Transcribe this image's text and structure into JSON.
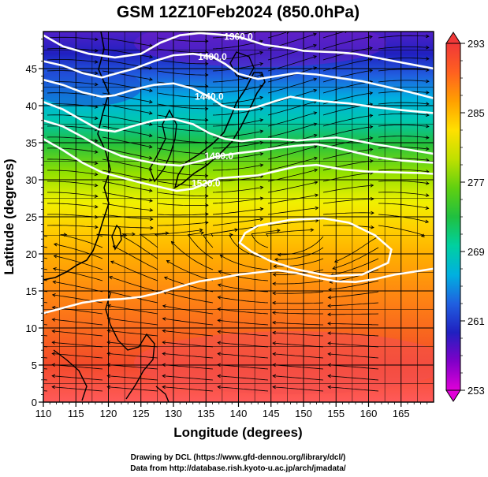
{
  "chart_data": {
    "type": "heatmap",
    "title": "GSM 12Z10Feb2024 (850.0hPa)",
    "xlabel": "Longitude (degrees)",
    "ylabel": "Latitude  (degrees)",
    "xlim": [
      110,
      170
    ],
    "ylim": [
      0,
      50
    ],
    "x_ticks": [
      "110",
      "115",
      "120",
      "125",
      "130",
      "135",
      "140",
      "145",
      "150",
      "155",
      "160",
      "165"
    ],
    "y_ticks": [
      "0",
      "5",
      "10",
      "15",
      "20",
      "25",
      "30",
      "35",
      "40",
      "45"
    ],
    "colorbar": {
      "min": 253,
      "max": 293,
      "tick_labels": [
        "253",
        "261",
        "269",
        "277",
        "285",
        "293"
      ],
      "colors": [
        "#e000d8",
        "#8000c8",
        "#2020c0",
        "#2060e0",
        "#00b0e0",
        "#00d0a0",
        "#20c040",
        "#60d010",
        "#c0e000",
        "#ffe000",
        "#ffa000",
        "#ff6020",
        "#f03838"
      ]
    },
    "contours": [
      {
        "label": "1360.0",
        "points": [
          [
            110,
            49.5
          ],
          [
            113,
            48
          ],
          [
            117,
            47
          ],
          [
            121,
            46.5
          ],
          [
            125,
            47
          ],
          [
            128,
            48.5
          ],
          [
            131,
            49.5
          ],
          [
            134,
            49.8
          ],
          [
            137,
            49.6
          ],
          [
            140,
            49.3
          ],
          [
            144,
            48.2
          ],
          [
            147.5,
            47.8
          ],
          [
            150,
            47.4
          ],
          [
            152.5,
            47.3
          ],
          [
            155,
            47.2
          ],
          [
            158,
            47
          ],
          [
            161,
            46.5
          ],
          [
            164,
            46
          ],
          [
            167,
            45.5
          ],
          [
            170,
            45
          ]
        ]
      },
      {
        "label": "1400.0",
        "points": [
          [
            110,
            46
          ],
          [
            113,
            45.4
          ],
          [
            116,
            44.4
          ],
          [
            119,
            43.8
          ],
          [
            121,
            44.3
          ],
          [
            124,
            45
          ],
          [
            127,
            46
          ],
          [
            130,
            46.8
          ],
          [
            133,
            47
          ],
          [
            136,
            46.6
          ],
          [
            138,
            45.6
          ],
          [
            140,
            44.3
          ],
          [
            143,
            43.6
          ],
          [
            146,
            44
          ],
          [
            149,
            44.4
          ],
          [
            152,
            44.2
          ],
          [
            155,
            43.8
          ],
          [
            159,
            43.3
          ],
          [
            163,
            42.5
          ],
          [
            166.5,
            41.8
          ],
          [
            170,
            41
          ]
        ]
      },
      {
        "label": "1440.0",
        "points": [
          [
            110,
            43.5
          ],
          [
            113,
            42.8
          ],
          [
            116,
            41.8
          ],
          [
            119,
            41.2
          ],
          [
            121,
            41.4
          ],
          [
            124,
            42.2
          ],
          [
            127,
            42.8
          ],
          [
            130,
            43
          ],
          [
            133,
            42.3
          ],
          [
            135.5,
            41.2
          ],
          [
            137.5,
            40
          ],
          [
            139.5,
            39.5
          ],
          [
            141.5,
            39.5
          ],
          [
            143.5,
            40
          ],
          [
            146,
            40.7
          ],
          [
            148,
            41.2
          ],
          [
            150,
            40.9
          ],
          [
            153,
            40.6
          ],
          [
            157,
            40.3
          ],
          [
            161,
            39.8
          ],
          [
            165,
            39.4
          ],
          [
            170,
            39
          ]
        ]
      },
      {
        "label": "",
        "points": [
          [
            110,
            40.5
          ],
          [
            113,
            39.5
          ],
          [
            116,
            38
          ],
          [
            118.5,
            36.8
          ],
          [
            121,
            36.5
          ],
          [
            124,
            37.3
          ],
          [
            127,
            38
          ],
          [
            130,
            38.2
          ],
          [
            133,
            37.5
          ],
          [
            135.5,
            36.3
          ],
          [
            138,
            35.5
          ],
          [
            140.5,
            35.2
          ],
          [
            143,
            35.5
          ],
          [
            146,
            35.5
          ],
          [
            149,
            35.3
          ],
          [
            152,
            35.5
          ],
          [
            155,
            35.7
          ],
          [
            158,
            35.3
          ],
          [
            161,
            34.8
          ],
          [
            164.5,
            34.3
          ],
          [
            168,
            33.8
          ],
          [
            170,
            33.5
          ]
        ]
      },
      {
        "label": "1520.0",
        "points": [
          [
            110,
            35.5
          ],
          [
            113,
            34
          ],
          [
            116,
            32.3
          ],
          [
            119,
            31
          ],
          [
            122,
            30.3
          ],
          [
            125,
            29.6
          ],
          [
            128,
            29
          ],
          [
            130.5,
            28.5
          ],
          [
            133,
            28.8
          ],
          [
            135,
            29.5
          ],
          [
            137,
            30.2
          ],
          [
            140,
            30.4
          ],
          [
            143,
            30.6
          ],
          [
            146,
            31.2
          ],
          [
            149,
            31.8
          ],
          [
            152,
            32
          ],
          [
            156,
            31.4
          ],
          [
            160,
            31.1
          ],
          [
            164,
            31
          ],
          [
            168,
            30.9
          ],
          [
            170,
            30.8
          ]
        ]
      },
      {
        "label": "1480.0",
        "points": [
          [
            110,
            38
          ],
          [
            113,
            37.2
          ],
          [
            116,
            35.8
          ],
          [
            119,
            34.3
          ],
          [
            122,
            33.2
          ],
          [
            125,
            32.6
          ],
          [
            128,
            32.1
          ],
          [
            131,
            31.9
          ],
          [
            134,
            32.5
          ],
          [
            137,
            33.2
          ],
          [
            140,
            33.6
          ],
          [
            143,
            33.9
          ],
          [
            146,
            34.3
          ],
          [
            149,
            34.6
          ],
          [
            152,
            34.8
          ],
          [
            155,
            34.3
          ],
          [
            158,
            33.7
          ],
          [
            161.5,
            33
          ],
          [
            165,
            32.6
          ],
          [
            168,
            32.4
          ],
          [
            170,
            32.3
          ]
        ]
      },
      {
        "label": "",
        "points": [
          [
            110,
            12
          ],
          [
            113,
            12.7
          ],
          [
            116,
            13.4
          ],
          [
            119,
            13.8
          ],
          [
            122,
            13.9
          ],
          [
            125,
            14.2
          ],
          [
            128,
            14.8
          ],
          [
            131,
            15.6
          ],
          [
            134,
            16.3
          ],
          [
            137,
            16.7
          ],
          [
            140,
            17.2
          ],
          [
            143,
            17.5
          ],
          [
            146,
            17.8
          ],
          [
            149,
            17.4
          ],
          [
            152,
            16.8
          ],
          [
            155,
            16.3
          ],
          [
            158,
            16.2
          ],
          [
            161,
            16.6
          ],
          [
            164,
            17.2
          ],
          [
            167,
            17.6
          ],
          [
            170,
            18
          ]
        ]
      }
    ],
    "closed_contours": [
      {
        "label": "",
        "points": [
          [
            143,
            23.8
          ],
          [
            148,
            24.6
          ],
          [
            153,
            24.8
          ],
          [
            157,
            24.2
          ],
          [
            161,
            22.5
          ],
          [
            163.5,
            20.6
          ],
          [
            163,
            18.8
          ],
          [
            159,
            17.2
          ],
          [
            154,
            17
          ],
          [
            149,
            17.9
          ],
          [
            145,
            19
          ],
          [
            142,
            20.3
          ],
          [
            140.2,
            21.5
          ],
          [
            141,
            22.8
          ]
        ]
      }
    ]
  }
}
